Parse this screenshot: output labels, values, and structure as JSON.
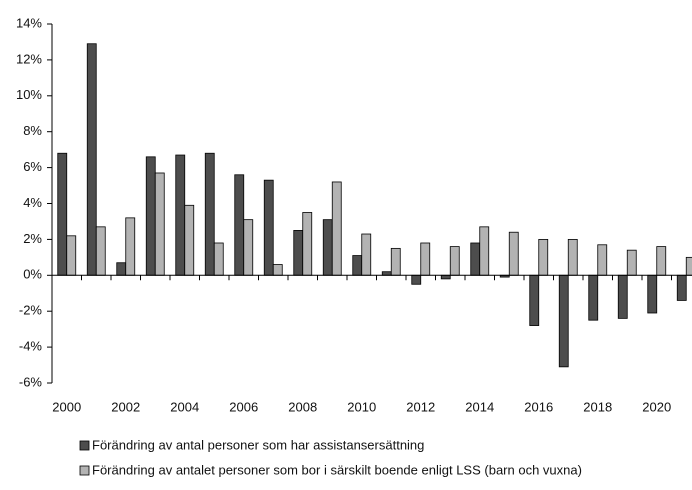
{
  "chart_data": {
    "type": "bar",
    "categories": [
      "2000",
      null,
      "2002",
      null,
      "2004",
      null,
      "2006",
      null,
      "2008",
      null,
      "2010",
      null,
      "2012",
      null,
      "2014",
      null,
      "2016",
      null,
      "2018",
      null,
      "2020",
      null
    ],
    "series": [
      {
        "name": "Förändring av antal personer som har assistansersättning",
        "color": "#4d4d4d",
        "values": [
          6.8,
          12.9,
          0.7,
          6.6,
          6.7,
          6.8,
          5.6,
          5.3,
          2.5,
          3.1,
          1.1,
          0.2,
          -0.5,
          -0.2,
          1.8,
          -0.1,
          -2.8,
          -5.1,
          -2.5,
          -2.4,
          -2.1,
          -1.4
        ]
      },
      {
        "name": "Förändring av antalet personer som bor i särskilt boende enligt LSS (barn och vuxna)",
        "color": "#b3b3b3",
        "values": [
          2.2,
          2.7,
          3.2,
          5.7,
          3.9,
          1.8,
          3.1,
          0.6,
          3.5,
          5.2,
          2.3,
          1.5,
          1.8,
          1.6,
          2.7,
          2.4,
          2.0,
          2.0,
          1.7,
          1.4,
          1.6,
          1.0
        ]
      }
    ],
    "ylim": [
      -6,
      14
    ],
    "yticks": [
      {
        "value": -6,
        "label": "-6%"
      },
      {
        "value": -4,
        "label": "-4%"
      },
      {
        "value": -2,
        "label": "-2%"
      },
      {
        "value": 0,
        "label": "0%"
      },
      {
        "value": 2,
        "label": "2%"
      },
      {
        "value": 4,
        "label": "4%"
      },
      {
        "value": 6,
        "label": "6%"
      },
      {
        "value": 8,
        "label": "8%"
      },
      {
        "value": 10,
        "label": "10%"
      },
      {
        "value": 12,
        "label": "12%"
      },
      {
        "value": 14,
        "label": "14%"
      }
    ],
    "grid": false,
    "legend": "bottom"
  }
}
